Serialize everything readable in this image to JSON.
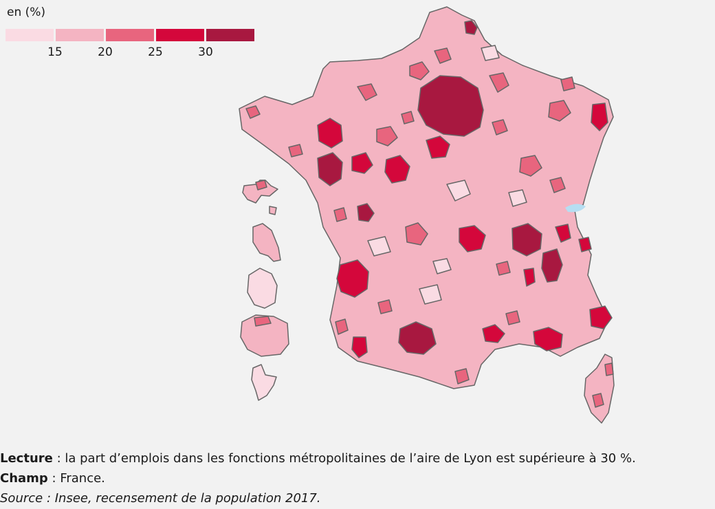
{
  "legend": {
    "title": "en (%)",
    "colors": [
      "#fadbe3",
      "#f4b4c2",
      "#e8657e",
      "#d4073b",
      "#a81840"
    ],
    "ticks": [
      "15",
      "20",
      "25",
      "30"
    ]
  },
  "map": {
    "palette": {
      "border": "#666666",
      "lake": "#b6def2",
      "c1": "#fadbe3",
      "c2": "#f4b4c2",
      "c3": "#e8657e",
      "c4": "#d4073b",
      "c5": "#a81840"
    }
  },
  "notes": {
    "lecture_label": "Lecture",
    "lecture_text": " : la part d’emplois dans les fonctions métropolitaines de l’aire de Lyon est supérieure à 30 %.",
    "champ_label": "Champ",
    "champ_text": " : France.",
    "source": "Source : Insee, recensement de la population 2017."
  }
}
